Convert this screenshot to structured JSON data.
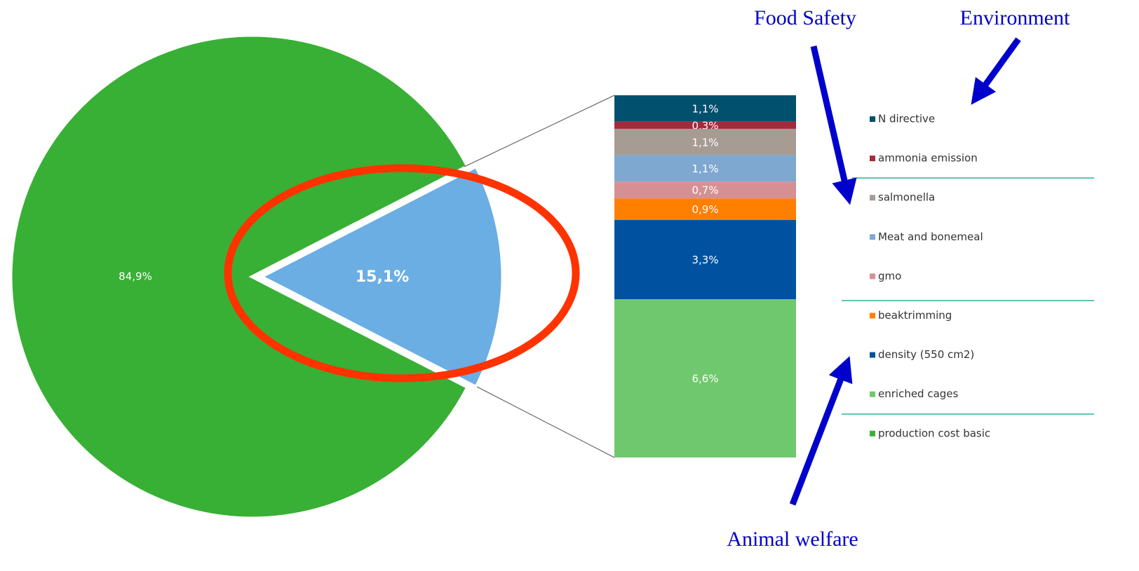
{
  "chart_data": {
    "type": "bar-of-pie",
    "pie": {
      "categories": [
        "production cost basic",
        null
      ],
      "values": [
        84.9,
        15.1
      ],
      "value_labels": [
        "84,9%",
        "15,1%"
      ],
      "colors": [
        "#38b035",
        "#6aaee3"
      ]
    },
    "bar": {
      "categories": [
        "N directive",
        "ammonia emission",
        "salmonella",
        "Meat and bonemeal",
        "gmo",
        "beaktrimming",
        "density (550 cm2)",
        "enriched cages"
      ],
      "values": [
        1.1,
        0.3,
        1.1,
        1.1,
        0.7,
        0.9,
        3.3,
        6.6
      ],
      "value_labels": [
        "1,1%",
        "0,3%",
        "1,1%",
        "1,1%",
        "0,7%",
        "0,9%",
        "3,3%",
        "6,6%"
      ],
      "colors": [
        "#00506e",
        "#a52a3a",
        "#a69c94",
        "#7fa8d0",
        "#d69094",
        "#ff7f00",
        "#0052a0",
        "#70c86e"
      ]
    },
    "annotations": [
      "Food Safety",
      "Environment",
      "Animal welfare"
    ],
    "annotation_color": "#0000cc"
  }
}
